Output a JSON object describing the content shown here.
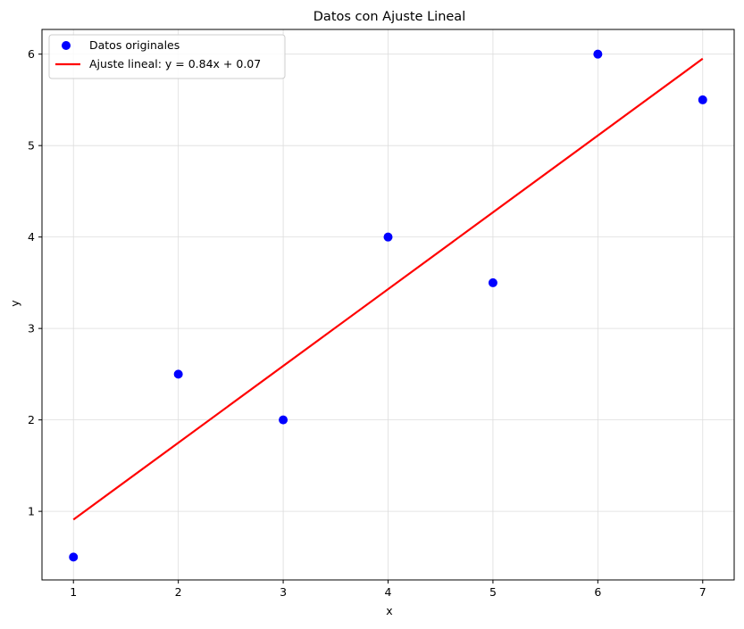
{
  "chart_data": {
    "type": "scatter",
    "title": "Datos con Ajuste Lineal",
    "xlabel": "x",
    "ylabel": "y",
    "xlim": [
      0.7,
      7.3
    ],
    "ylim": [
      0.25,
      6.27
    ],
    "xticks": [
      1,
      2,
      3,
      4,
      5,
      6,
      7
    ],
    "yticks": [
      1,
      2,
      3,
      4,
      5,
      6
    ],
    "grid": true,
    "legend_position": "top-left",
    "series": [
      {
        "name": "Datos originales",
        "type": "scatter",
        "color": "#0000ff",
        "x": [
          1,
          2,
          3,
          4,
          5,
          6,
          7
        ],
        "y": [
          0.5,
          2.5,
          2.0,
          4.0,
          3.5,
          6.0,
          5.5
        ]
      },
      {
        "name": "Ajuste lineal: y = 0.84x + 0.07",
        "type": "line",
        "color": "#ff0000",
        "x": [
          1,
          7
        ],
        "y": [
          0.91,
          5.95
        ]
      }
    ]
  }
}
